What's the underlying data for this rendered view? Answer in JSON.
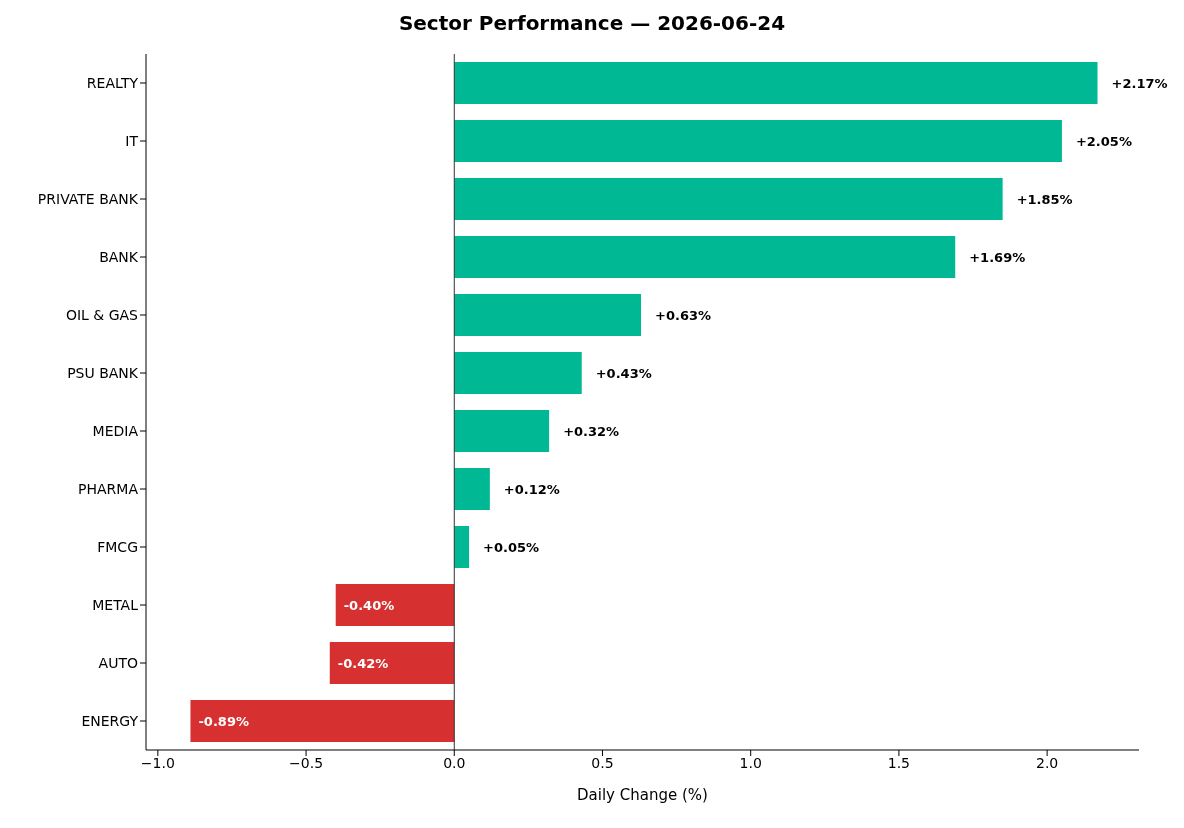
{
  "chart_data": {
    "type": "bar",
    "orientation": "horizontal",
    "title": "Sector Performance — 2026-06-24",
    "xlabel": "Daily Change (%)",
    "categories": [
      "REALTY",
      "IT",
      "PRIVATE BANK",
      "BANK",
      "OIL & GAS",
      "PSU BANK",
      "MEDIA",
      "PHARMA",
      "FMCG",
      "METAL",
      "AUTO",
      "ENERGY"
    ],
    "values": [
      2.17,
      2.05,
      1.85,
      1.69,
      0.63,
      0.43,
      0.32,
      0.12,
      0.05,
      -0.4,
      -0.42,
      -0.89
    ],
    "colors": [
      "#00b894",
      "#00b894",
      "#00b894",
      "#00b894",
      "#00b894",
      "#00b894",
      "#00b894",
      "#00b894",
      "#00b894",
      "#d63031",
      "#d63031",
      "#d63031"
    ],
    "value_labels": [
      "+2.17%",
      "+2.05%",
      "+1.85%",
      "+1.69%",
      "+0.63%",
      "+0.43%",
      "+0.32%",
      "+0.12%",
      "+0.05%",
      "-0.40%",
      "-0.42%",
      "-0.89%"
    ],
    "xlim": [
      -1.04,
      2.31
    ],
    "xticks": [
      {
        "value": -1,
        "label": "−1.0"
      },
      {
        "value": -0.5,
        "label": "−0.5"
      },
      {
        "value": 0,
        "label": "0.0"
      },
      {
        "value": 0.5,
        "label": "0.5"
      },
      {
        "value": 1,
        "label": "1.0"
      },
      {
        "value": 1.5,
        "label": "1.5"
      },
      {
        "value": 2,
        "label": "2.0"
      }
    ],
    "ref_lines": [
      {
        "axis": "x",
        "value": 0,
        "color": "#333333"
      }
    ],
    "grid": false,
    "legend": false
  }
}
